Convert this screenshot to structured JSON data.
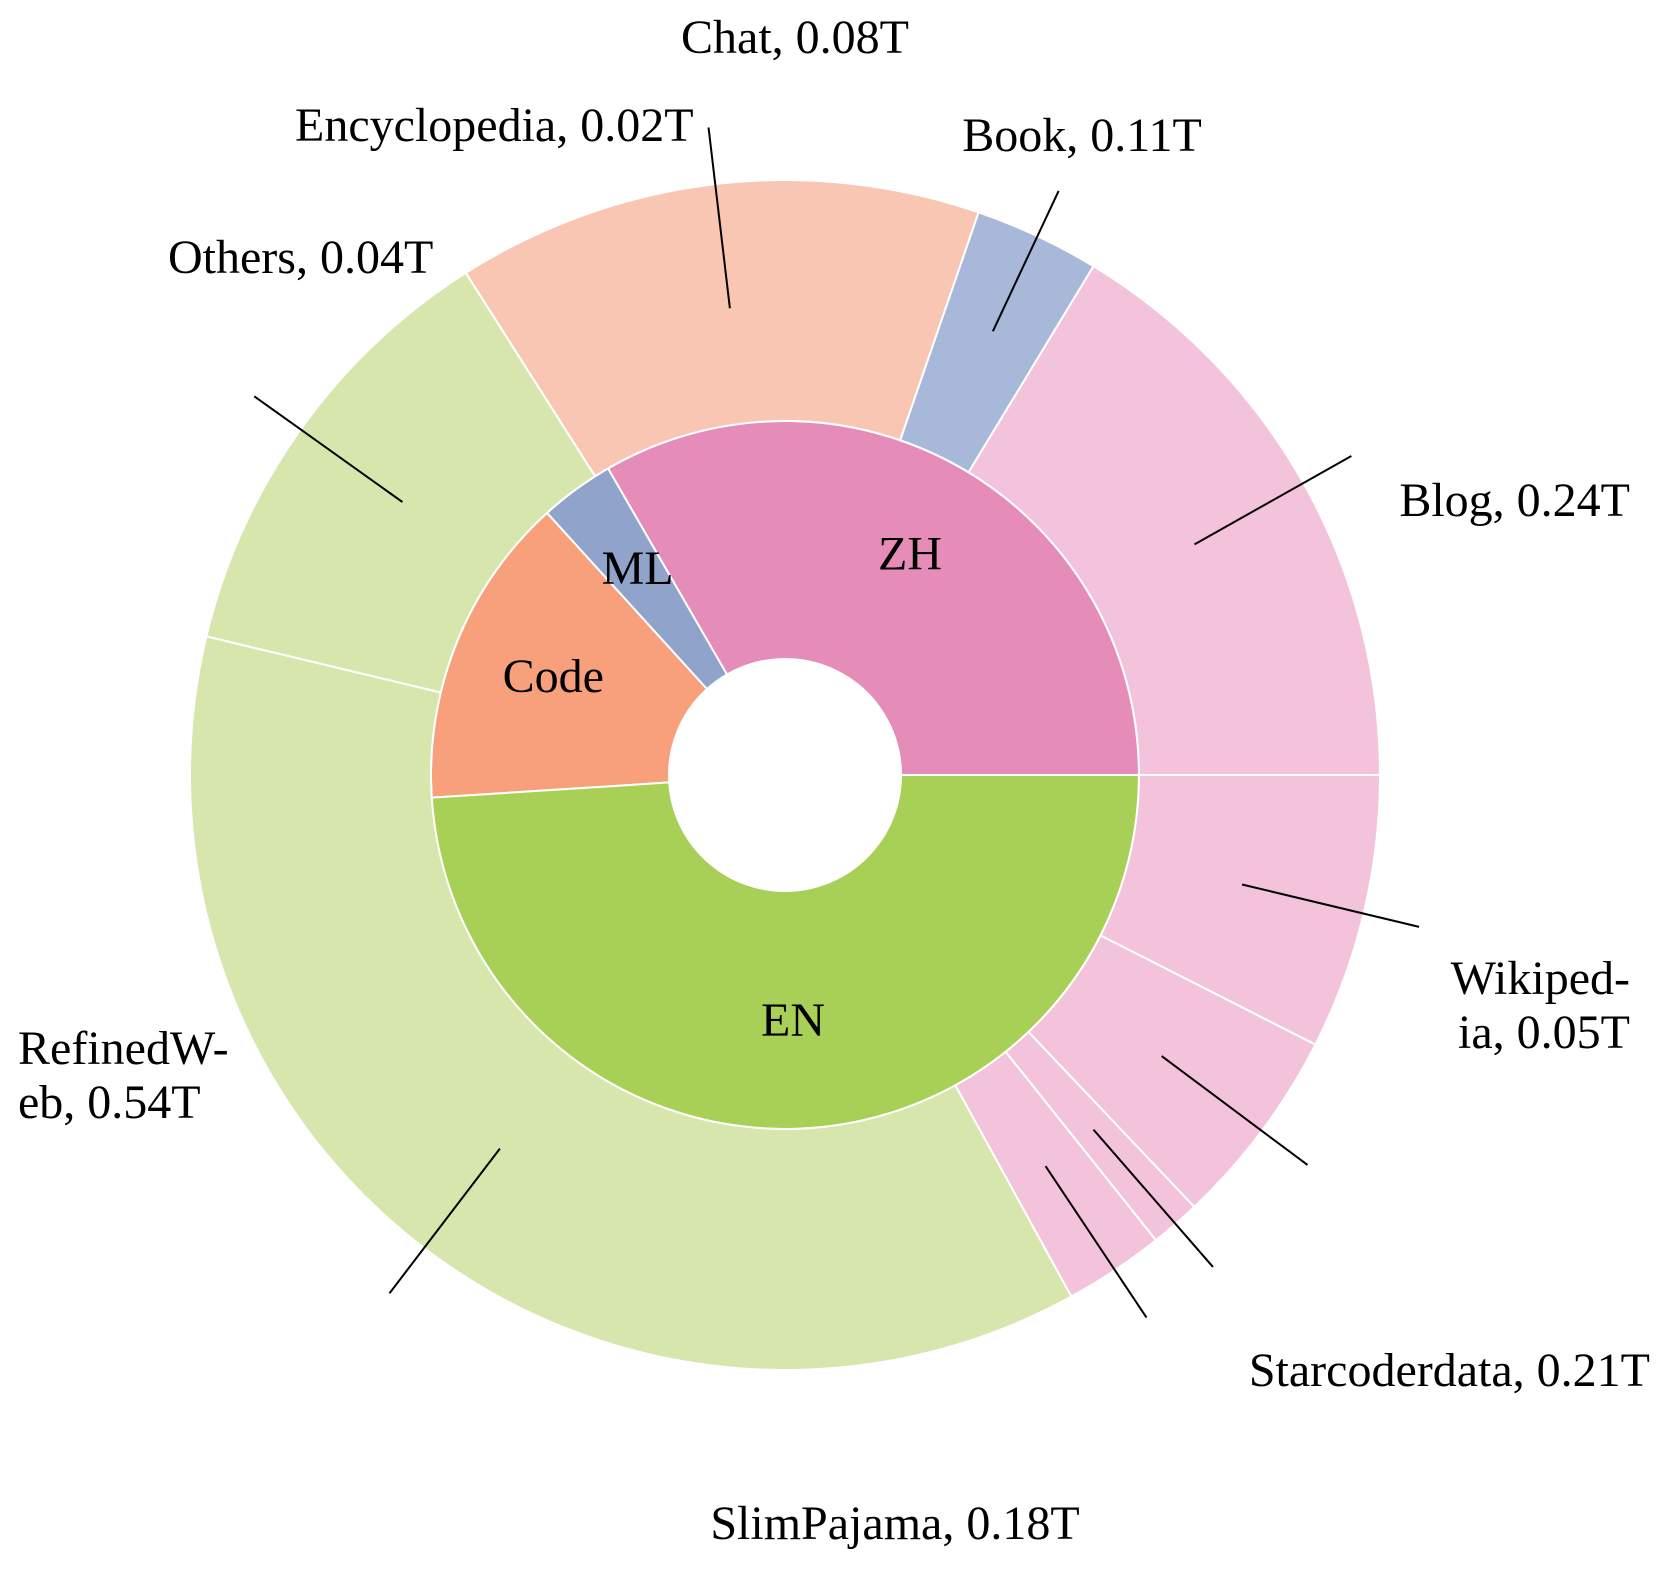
{
  "chart_data": {
    "type": "sunburst",
    "unit": "T",
    "inner": [
      {
        "name": "ZH",
        "value": 0.49,
        "color": "#e58cb9"
      },
      {
        "name": "ML",
        "value": 0.05,
        "color": "#8fa3cb"
      },
      {
        "name": "Code",
        "value": 0.21,
        "color": "#f8a07c"
      },
      {
        "name": "EN",
        "value": 0.72,
        "color": "#a9d056"
      }
    ],
    "outer": [
      {
        "parent": "ZH",
        "name": "Blog",
        "value": 0.24,
        "label_lines": [
          "Blog, 0.24T"
        ],
        "color": "#f2c3da"
      },
      {
        "parent": "ML",
        "name": "Wikipedia",
        "value": 0.05,
        "label_lines": [
          "Wikiped-",
          "ia, 0.05T"
        ],
        "color": "#a8b8d9"
      },
      {
        "parent": "Code",
        "name": "Starcoderdata",
        "value": 0.21,
        "label_lines": [
          "Starcoderdata, 0.21T"
        ],
        "color": "#f8c6b2"
      },
      {
        "parent": "EN",
        "name": "SlimPajama",
        "value": 0.18,
        "label_lines": [
          "SlimPajama, 0.18T"
        ],
        "color": "#d6e6ac"
      },
      {
        "parent": "EN",
        "name": "RefinedWeb",
        "value": 0.54,
        "label_lines": [
          "RefinedW-",
          "eb, 0.54T"
        ],
        "color": "#d6e6ac"
      },
      {
        "parent": "ZH",
        "name": "Others",
        "value": 0.04,
        "label_lines": [
          "Others, 0.04T"
        ],
        "color": "#f2c3da"
      },
      {
        "parent": "ZH",
        "name": "Encyclopedia",
        "value": 0.02,
        "label_lines": [
          "Encyclopedia, 0.02T"
        ],
        "color": "#f2c3da"
      },
      {
        "parent": "ZH",
        "name": "Chat",
        "value": 0.08,
        "label_lines": [
          "Chat, 0.08T"
        ],
        "color": "#f2c3da"
      },
      {
        "parent": "ZH",
        "name": "Book",
        "value": 0.11,
        "label_lines": [
          "Book, 0.11T"
        ],
        "color": "#f2c3da"
      }
    ]
  }
}
